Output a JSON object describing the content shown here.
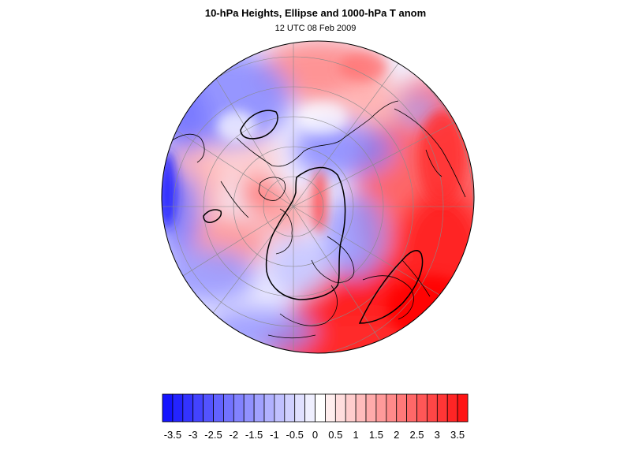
{
  "title": "10-hPa Heights, Ellipse and 1000-hPa T anom",
  "subtitle": "12 UTC 08 Feb 2009",
  "map": {
    "projection": "orthographic north polar",
    "field": "1000-hPa T anom",
    "colors": {
      "cold_max": "#1414ff",
      "warm_max": "#ff1414",
      "neutral": "#ffffff",
      "coastline": "#000000",
      "graticule": "#888888"
    }
  },
  "colorbar": {
    "levels": [
      -3.75,
      -3.5,
      -3.25,
      -3,
      -2.75,
      -2.5,
      -2.25,
      -2,
      -1.75,
      -1.5,
      -1.25,
      -1,
      -0.75,
      -0.5,
      -0.25,
      0,
      0.25,
      0.5,
      0.75,
      1,
      1.25,
      1.5,
      1.75,
      2,
      2.25,
      2.5,
      2.75,
      3,
      3.25,
      3.5,
      3.75
    ],
    "tick_labels": [
      "-3.5",
      "-3",
      "-2.5",
      "-2",
      "-1.5",
      "-1",
      "-0.5",
      "0",
      "0.5",
      "1",
      "1.5",
      "2",
      "2.5",
      "3",
      "3.5"
    ]
  }
}
